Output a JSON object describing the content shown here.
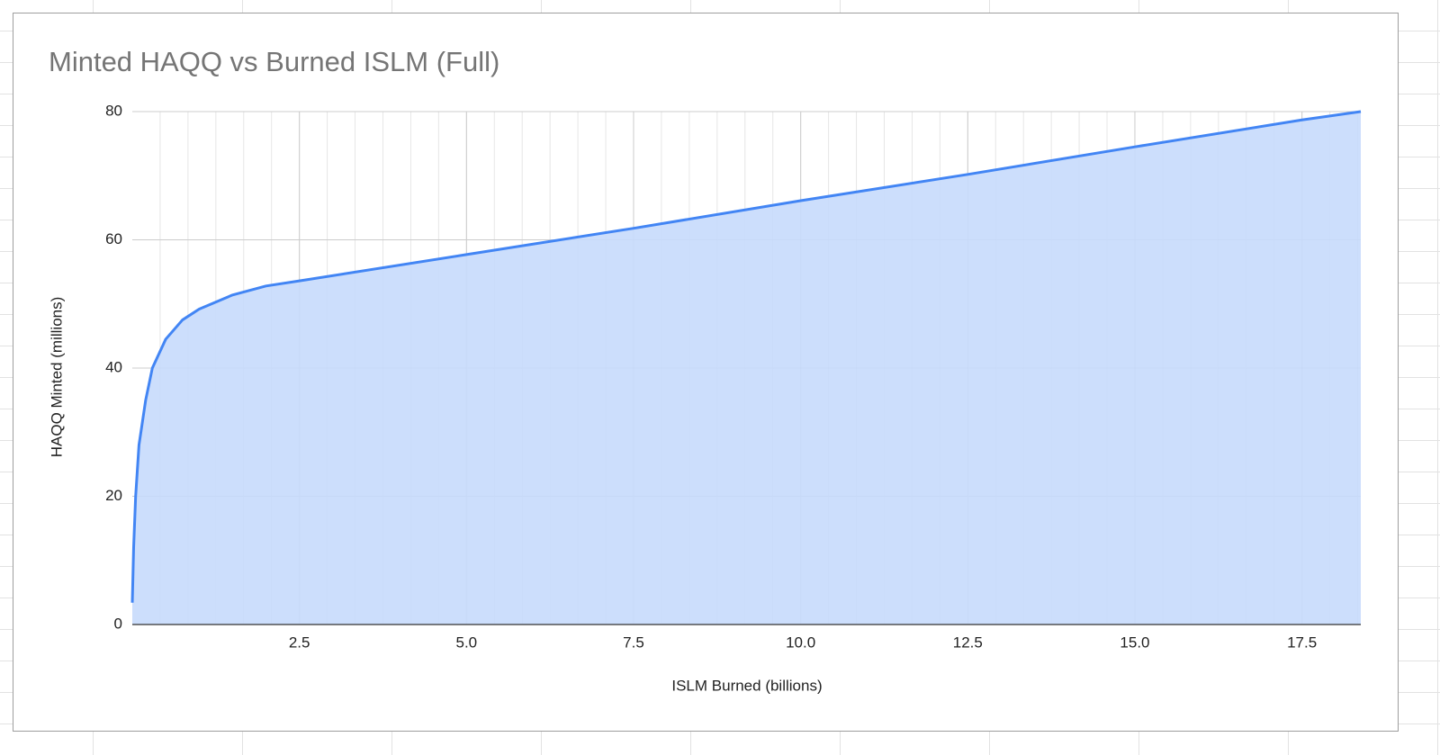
{
  "chart_data": {
    "type": "area",
    "title": "Minted HAQQ vs Burned ISLM (Full)",
    "x_label": "ISLM Burned  (billions)",
    "y_label": "HAQQ Minted (millions)",
    "x": [
      0,
      0.02,
      0.05,
      0.1,
      0.2,
      0.3,
      0.5,
      0.75,
      1.0,
      1.5,
      2.0,
      2.5,
      5.0,
      7.5,
      10.0,
      12.5,
      15.0,
      17.5,
      18.38
    ],
    "values": [
      3.4,
      12,
      20,
      28,
      35,
      40,
      44.5,
      47.5,
      49.2,
      51.4,
      52.8,
      53.6,
      57.7,
      61.8,
      66.1,
      70.2,
      74.5,
      78.7,
      80
    ],
    "color": "#4285f4",
    "fill": "#c6dafc",
    "xlim": [
      0,
      18.38
    ],
    "ylim": [
      0,
      80
    ],
    "xticks": [
      2.5,
      {
        "value": 5,
        "label": "5.0"
      },
      7.5,
      {
        "value": 10,
        "label": "10.0"
      },
      12.5,
      {
        "value": 15,
        "label": "15.0"
      },
      17.5
    ],
    "yticks": [
      0,
      20,
      40,
      60,
      80
    ],
    "grid": true,
    "x_minor_grid": 5
  }
}
